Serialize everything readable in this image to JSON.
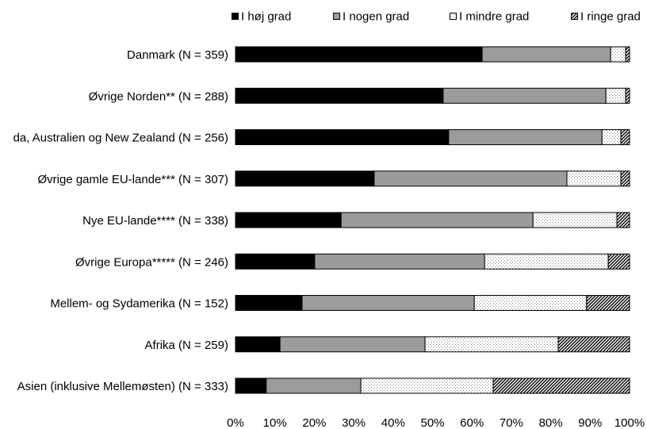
{
  "chart_data": {
    "type": "bar",
    "orientation": "horizontal",
    "stacking": "percent",
    "categories": [
      "Danmark (N = 359)",
      "Øvrige Norden** (N = 288)",
      "da, Australien og New Zealand (N = 256)",
      "Øvrige gamle EU-lande*** (N = 307)",
      "Nye EU-lande**** (N = 338)",
      "Øvrige Europa***** (N = 246)",
      "Mellem- og Sydamerika (N = 152)",
      "Afrika (N = 259)",
      "Asien (inklusive Mellemøsten) (N = 333)"
    ],
    "series": [
      {
        "name": "I høj grad",
        "fill": "#000000",
        "pattern": "solid",
        "values": [
          62.6,
          52.7,
          54.1,
          35.2,
          26.8,
          20.1,
          16.9,
          11.3,
          7.8
        ]
      },
      {
        "name": "I nogen grad",
        "fill": "#9b9b9b",
        "pattern": "solid",
        "values": [
          32.6,
          41.3,
          38.9,
          48.9,
          48.7,
          43.1,
          43.7,
          36.8,
          24.0
        ]
      },
      {
        "name": "I mindre grad",
        "fill": "#ffffff",
        "pattern": "dots",
        "values": [
          3.8,
          5.0,
          4.8,
          13.7,
          21.3,
          31.4,
          28.5,
          33.8,
          33.6
        ]
      },
      {
        "name": "I ringe grad",
        "fill": "#000000",
        "pattern": "diagonal-hatch",
        "values": [
          1.0,
          1.0,
          2.2,
          2.2,
          3.2,
          5.4,
          10.9,
          18.1,
          34.6
        ]
      }
    ],
    "xlim": [
      0,
      100
    ],
    "x_ticks": [
      0,
      10,
      20,
      30,
      40,
      50,
      60,
      70,
      80,
      90,
      100
    ],
    "x_tick_labels": [
      "0%",
      "10%",
      "20%",
      "30%",
      "40%",
      "50%",
      "60%",
      "70%",
      "80%",
      "90%",
      "100%"
    ],
    "grid": false,
    "legend_position": "top"
  }
}
